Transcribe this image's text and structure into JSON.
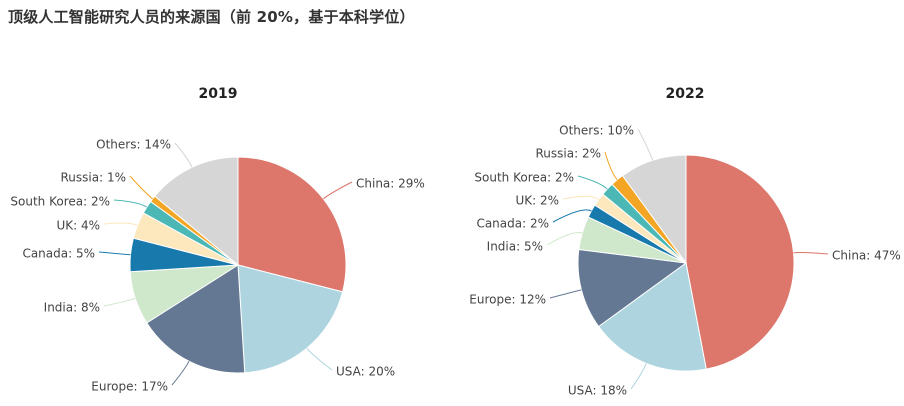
{
  "page_title": "顶级人工智能研究人员的来源国（前 20%，基于本科学位）",
  "chart_data": [
    {
      "type": "pie",
      "title": "2019",
      "slices": [
        {
          "label": "China",
          "value": 29,
          "text": "China: 29%",
          "color": "#dd766b"
        },
        {
          "label": "USA",
          "value": 20,
          "text": "USA: 20%",
          "color": "#aed5df"
        },
        {
          "label": "Europe",
          "value": 17,
          "text": "Europe: 17%",
          "color": "#647893"
        },
        {
          "label": "India",
          "value": 8,
          "text": "India: 8%",
          "color": "#cfe8cb"
        },
        {
          "label": "Canada",
          "value": 5,
          "text": "Canada: 5%",
          "color": "#1879ad"
        },
        {
          "label": "UK",
          "value": 4,
          "text": "UK: 4%",
          "color": "#fde7bd"
        },
        {
          "label": "South Korea",
          "value": 2,
          "text": "South Korea: 2%",
          "color": "#4cb8b5"
        },
        {
          "label": "Russia",
          "value": 1,
          "text": "Russia: 1%",
          "color": "#f5a524"
        },
        {
          "label": "Others",
          "value": 14,
          "text": "Others: 14%",
          "color": "#d6d6d6"
        }
      ]
    },
    {
      "type": "pie",
      "title": "2022",
      "slices": [
        {
          "label": "China",
          "value": 47,
          "text": "China: 47%",
          "color": "#dd766b"
        },
        {
          "label": "USA",
          "value": 18,
          "text": "USA: 18%",
          "color": "#aed5df"
        },
        {
          "label": "Europe",
          "value": 12,
          "text": "Europe: 12%",
          "color": "#647893"
        },
        {
          "label": "India",
          "value": 5,
          "text": "India: 5%",
          "color": "#cfe8cb"
        },
        {
          "label": "Canada",
          "value": 2,
          "text": "Canada: 2%",
          "color": "#1879ad"
        },
        {
          "label": "UK",
          "value": 2,
          "text": "UK: 2%",
          "color": "#fde7bd"
        },
        {
          "label": "South Korea",
          "value": 2,
          "text": "South Korea: 2%",
          "color": "#4cb8b5"
        },
        {
          "label": "Russia",
          "value": 2,
          "text": "Russia: 2%",
          "color": "#f5a524"
        },
        {
          "label": "Others",
          "value": 10,
          "text": "Others: 10%",
          "color": "#d6d6d6"
        }
      ]
    }
  ]
}
